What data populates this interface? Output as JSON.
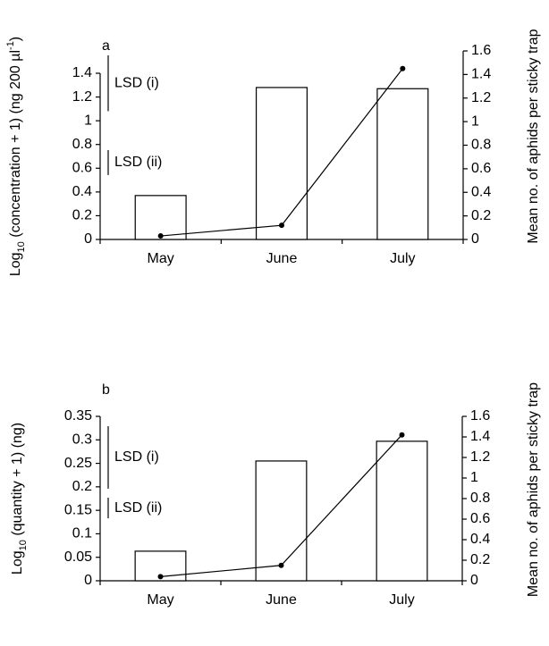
{
  "chart_data": [
    {
      "type": "bar",
      "panel": "a",
      "y_label": [
        "Log",
        "10",
        " (concentration + 1) (ng 200 µl",
        "-1",
        ")"
      ],
      "y2_label": "Mean no. of aphids per sticky trap",
      "categories": [
        "May",
        "June",
        "July"
      ],
      "series": [
        {
          "type": "bar",
          "color": "#ffffff",
          "values": [
            0.37,
            1.28,
            1.27
          ]
        },
        {
          "type": "line",
          "axis": "y2",
          "color": "#000000",
          "values": [
            0.03,
            0.12,
            1.45
          ]
        }
      ],
      "ylim": [
        0,
        1.4
      ],
      "yticks": [
        0,
        0.2,
        0.4,
        0.6,
        0.8,
        1,
        1.2,
        1.4
      ],
      "y2lim": [
        0,
        1.6
      ],
      "y2ticks": [
        0,
        0.2,
        0.4,
        0.6,
        0.8,
        1,
        1.2,
        1.4,
        1.6
      ],
      "lsd": [
        {
          "label": "LSD (i)",
          "value": 0.47
        },
        {
          "label": "LSD (ii)",
          "value": 0.21
        }
      ]
    },
    {
      "type": "bar",
      "panel": "b",
      "y_label": [
        "Log",
        "10",
        " (quantity + 1) (ng)"
      ],
      "y2_label": "Mean no. of aphids per sticky trap",
      "categories": [
        "May",
        "June",
        "July"
      ],
      "series": [
        {
          "type": "bar",
          "color": "#ffffff",
          "values": [
            0.063,
            0.255,
            0.297
          ]
        },
        {
          "type": "line",
          "axis": "y2",
          "color": "#000000",
          "values": [
            0.04,
            0.15,
            1.42
          ]
        }
      ],
      "ylim": [
        0,
        0.35
      ],
      "yticks": [
        0,
        0.05,
        0.1,
        0.15,
        0.2,
        0.25,
        0.3,
        0.35
      ],
      "y2lim": [
        0,
        1.6
      ],
      "y2ticks": [
        0,
        0.2,
        0.4,
        0.6,
        0.8,
        1,
        1.2,
        1.4,
        1.6
      ],
      "lsd": [
        {
          "label": "LSD (i)",
          "value": 0.133
        },
        {
          "label": "LSD (ii)",
          "value": 0.044
        }
      ]
    }
  ]
}
